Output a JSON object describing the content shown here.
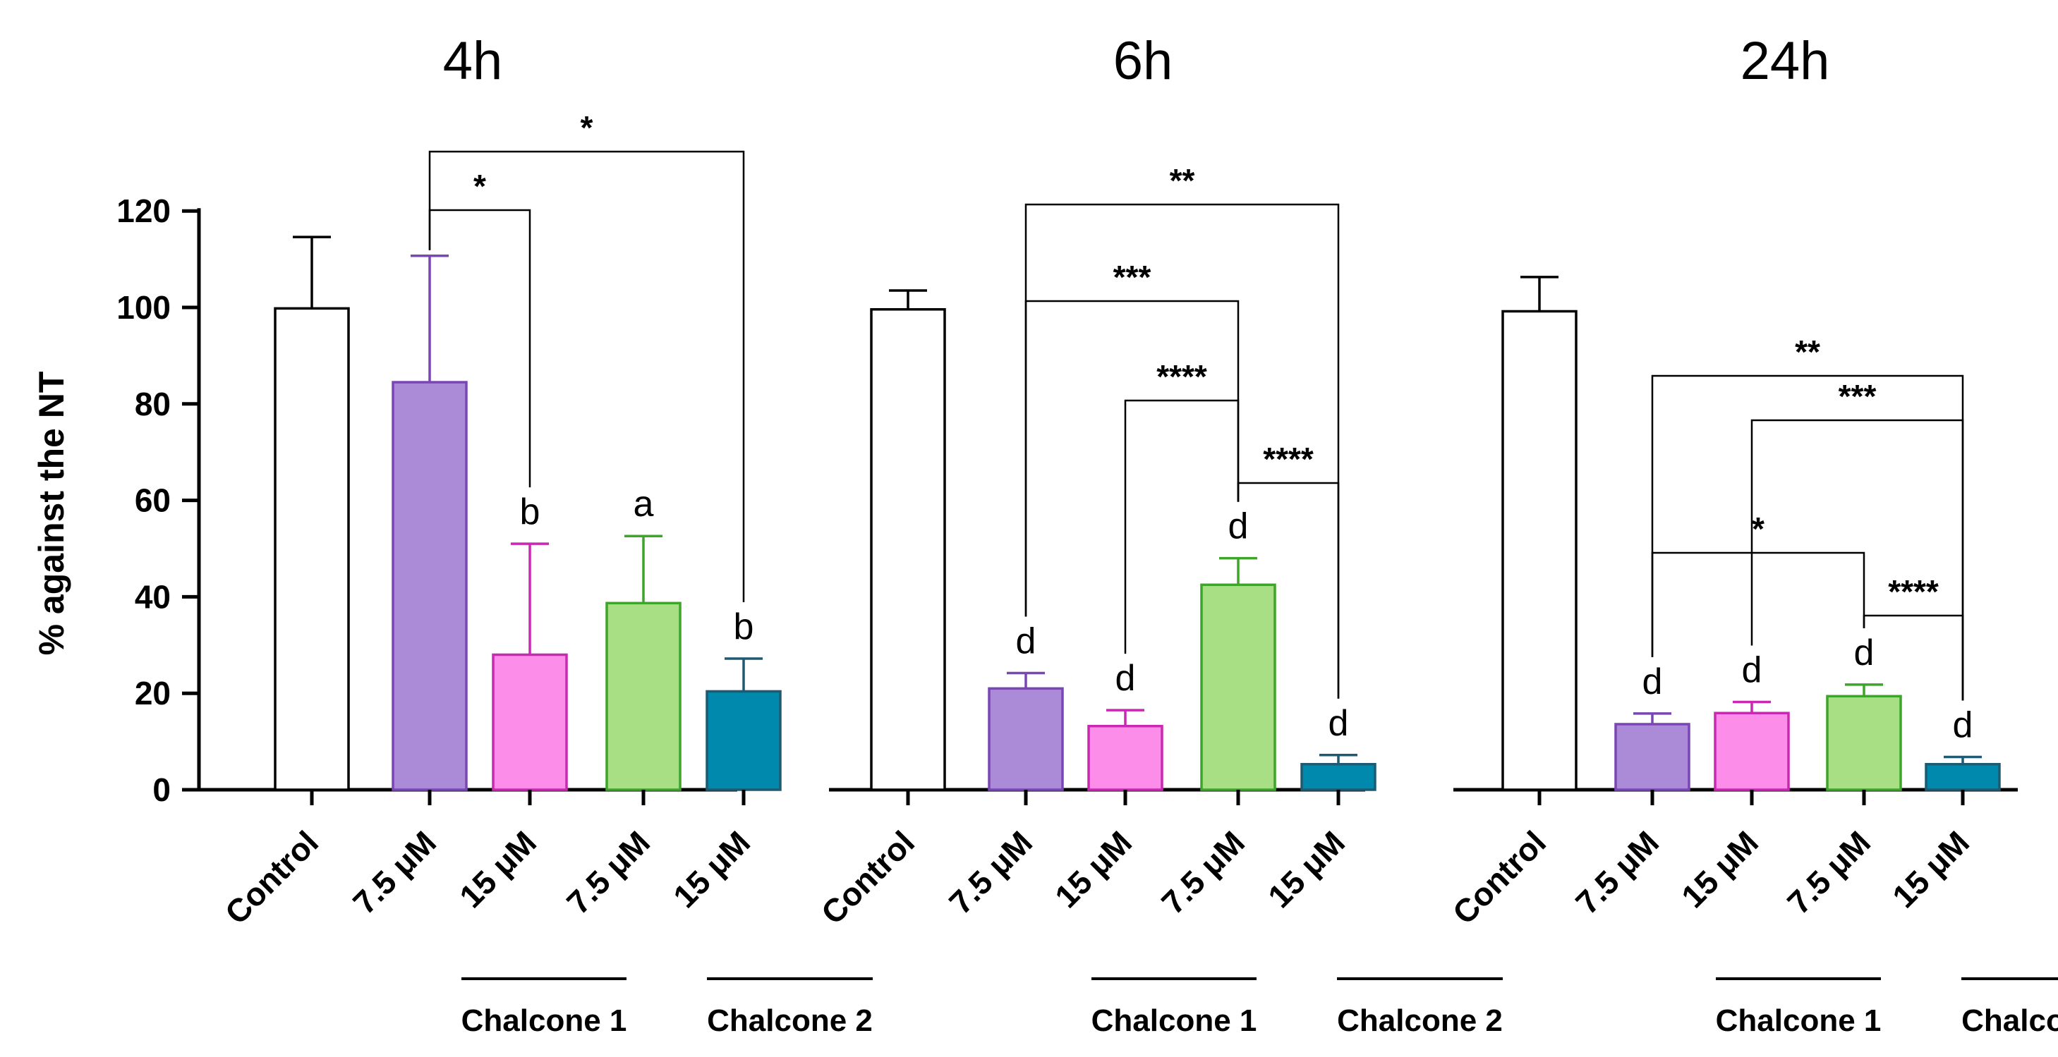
{
  "chart_data": {
    "type": "bar",
    "ylabel": "% against the NT",
    "ylim": [
      0,
      120
    ],
    "yticks": [
      0,
      20,
      40,
      60,
      80,
      100,
      120
    ],
    "categories": [
      "Control",
      "7.5 μM",
      "15 μM",
      "7.5 μM",
      "15 μM"
    ],
    "groups": [
      {
        "label": "Chalcone 1",
        "members": [
          1,
          2
        ]
      },
      {
        "label": "Chalcone 2",
        "members": [
          3,
          4
        ]
      }
    ],
    "colors": {
      "fill": [
        "#ffffff",
        "#ab8ad8",
        "#fc8eea",
        "#a8df85",
        "#0088ad"
      ],
      "stroke": [
        "#000000",
        "#7a45b5",
        "#c928b0",
        "#3ea42a",
        "#1e5b72"
      ]
    },
    "panels": [
      {
        "title": "4h",
        "values": [
          99.8,
          84.5,
          28.0,
          38.7,
          20.4
        ],
        "errors": [
          14.8,
          26.2,
          23.0,
          13.9,
          6.8
        ],
        "letters": [
          "",
          "",
          "b",
          "a",
          "b"
        ],
        "comparisons": [
          {
            "from": 1,
            "to": 4,
            "label": "*"
          },
          {
            "from": 1,
            "to": 2,
            "label": "*"
          }
        ]
      },
      {
        "title": "6h",
        "values": [
          99.6,
          21.0,
          13.2,
          42.5,
          5.3
        ],
        "errors": [
          3.9,
          3.2,
          3.3,
          5.5,
          1.9
        ],
        "letters": [
          "",
          "d",
          "d",
          "d",
          "d"
        ],
        "comparisons": [
          {
            "from": 1,
            "to": 4,
            "label": "**"
          },
          {
            "from": 1,
            "to": 3,
            "label": "***"
          },
          {
            "from": 2,
            "to": 3,
            "label": "****"
          },
          {
            "from": 3,
            "to": 4,
            "label": "****"
          }
        ]
      },
      {
        "title": "24h",
        "values": [
          99.2,
          13.6,
          15.9,
          19.4,
          5.3
        ],
        "errors": [
          7.1,
          2.2,
          2.3,
          2.4,
          1.5
        ],
        "letters": [
          "",
          "d",
          "d",
          "d",
          "d"
        ],
        "comparisons": [
          {
            "from": 1,
            "to": 4,
            "label": "**"
          },
          {
            "from": 2,
            "to": 4,
            "label": "***"
          },
          {
            "from": 1,
            "to": 3,
            "label": "*"
          },
          {
            "from": 3,
            "to": 4,
            "label": "****"
          }
        ]
      }
    ]
  }
}
